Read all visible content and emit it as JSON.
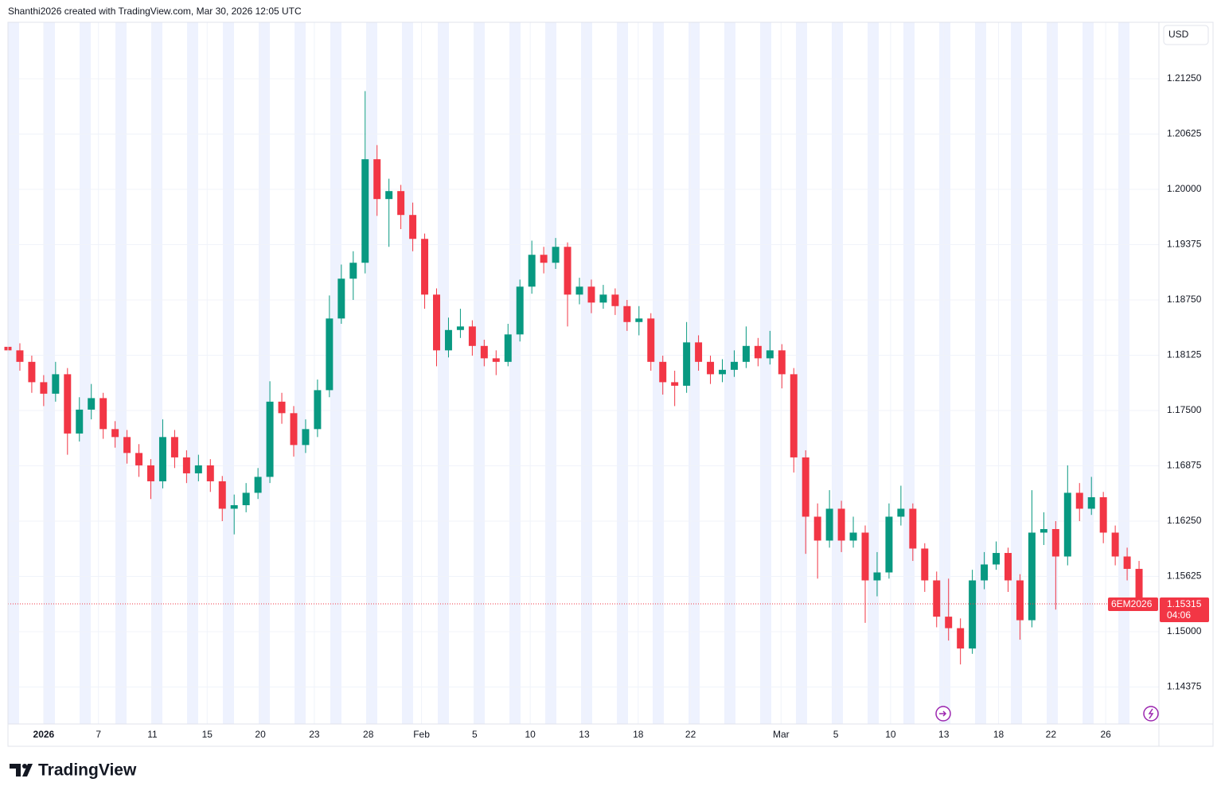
{
  "header": {
    "title": "Shanthi2026 created with TradingView.com, Mar 30, 2026 12:05 UTC"
  },
  "brand": "TradingView",
  "chart_data": {
    "type": "candlestick",
    "symbol": "6EM2026",
    "currency": "USD",
    "countdown": "04:06",
    "up_color": "#089981",
    "down_color": "#f23645",
    "grid": true,
    "xlim": [
      0,
      144
    ],
    "ylim": [
      1.13957,
      1.21888
    ],
    "xticks": [
      {
        "value": 4.5,
        "label": "2026"
      },
      {
        "value": 11.4,
        "label": "7"
      },
      {
        "value": 18.2,
        "label": "11"
      },
      {
        "value": 25.1,
        "label": "15"
      },
      {
        "value": 31.8,
        "label": "20"
      },
      {
        "value": 38.6,
        "label": "23"
      },
      {
        "value": 45.4,
        "label": "28"
      },
      {
        "value": 52.1,
        "label": "Feb"
      },
      {
        "value": 58.8,
        "label": "5"
      },
      {
        "value": 65.8,
        "label": "10"
      },
      {
        "value": 72.6,
        "label": "13"
      },
      {
        "value": 79.4,
        "label": "18"
      },
      {
        "value": 86.0,
        "label": "22"
      },
      {
        "value": 97.4,
        "label": "Mar"
      },
      {
        "value": 104.3,
        "label": "5"
      },
      {
        "value": 111.2,
        "label": "10"
      },
      {
        "value": 117.9,
        "label": "13"
      },
      {
        "value": 124.8,
        "label": "18"
      },
      {
        "value": 131.4,
        "label": "22"
      },
      {
        "value": 138.3,
        "label": "26"
      }
    ],
    "yticks": [
      {
        "value": 1.2125,
        "label": "1.21250"
      },
      {
        "value": 1.20625,
        "label": "1.20625"
      },
      {
        "value": 1.2,
        "label": "1.20000"
      },
      {
        "value": 1.19375,
        "label": "1.19375"
      },
      {
        "value": 1.1875,
        "label": "1.18750"
      },
      {
        "value": 1.18125,
        "label": "1.18125"
      },
      {
        "value": 1.175,
        "label": "1.17500"
      },
      {
        "value": 1.16875,
        "label": "1.16875"
      },
      {
        "value": 1.1625,
        "label": "1.16250"
      },
      {
        "value": 1.15625,
        "label": "1.15625"
      },
      {
        "value": 1.15,
        "label": "1.15000"
      },
      {
        "value": 1.14375,
        "label": "1.14375"
      }
    ],
    "x": [
      0,
      1.5,
      3,
      4.5,
      6,
      7.5,
      9,
      10.5,
      12,
      13.5,
      15,
      16.5,
      18,
      19.5,
      21,
      22.5,
      24,
      25.5,
      27,
      28.5,
      30,
      31.5,
      33,
      34.5,
      36,
      37.5,
      39,
      40.5,
      42,
      43.5,
      45,
      46.5,
      48,
      49.5,
      51,
      52.5,
      54,
      55.5,
      57,
      58.5,
      60,
      61.5,
      63,
      64.5,
      66,
      67.5,
      69,
      70.5,
      72,
      73.5,
      75,
      76.5,
      78,
      79.5,
      81,
      82.5,
      84,
      85.5,
      87,
      88.5,
      90,
      91.5,
      93,
      94.5,
      96,
      97.5,
      99,
      100.5,
      102,
      103.5,
      105,
      106.5,
      108,
      109.5,
      111,
      112.5,
      114,
      115.5,
      117,
      118.5,
      120,
      121.5,
      123,
      124.5,
      126,
      127.5,
      129,
      130.5,
      132,
      133.5,
      135,
      136.5,
      138,
      139.5,
      141,
      142.5
    ],
    "open": [
      1.1822,
      1.1818,
      1.1805,
      1.1782,
      1.1769,
      1.1791,
      1.1724,
      1.1751,
      1.1764,
      1.1729,
      1.172,
      1.1702,
      1.1688,
      1.167,
      1.172,
      1.1697,
      1.1679,
      1.1688,
      1.167,
      1.1639,
      1.1643,
      1.1657,
      1.1675,
      1.176,
      1.1747,
      1.1711,
      1.1729,
      1.1773,
      1.1854,
      1.1899,
      1.1917,
      1.2034,
      1.1989,
      1.1998,
      1.1971,
      1.1944,
      1.1881,
      1.1818,
      1.1841,
      1.1845,
      1.1823,
      1.1809,
      1.1805,
      1.1836,
      1.189,
      1.1926,
      1.1917,
      1.1935,
      1.1881,
      1.189,
      1.1872,
      1.1881,
      1.1868,
      1.185,
      1.1854,
      1.1805,
      1.1782,
      1.1778,
      1.1827,
      1.1805,
      1.1791,
      1.1796,
      1.1805,
      1.1823,
      1.1809,
      1.1818,
      1.1791,
      1.1697,
      1.163,
      1.1603,
      1.1639,
      1.1603,
      1.1612,
      1.1558,
      1.1567,
      1.163,
      1.1639,
      1.1594,
      1.1558,
      1.1517,
      1.1504,
      1.1481,
      1.1558,
      1.1576,
      1.1589,
      1.1558,
      1.1513,
      1.1612,
      1.1616,
      1.1585,
      1.1657,
      1.1639,
      1.1652,
      1.1612,
      1.1585,
      1.1571
    ],
    "high": [
      1.183,
      1.1826,
      1.1812,
      1.179,
      1.1805,
      1.1798,
      1.1765,
      1.178,
      1.177,
      1.1738,
      1.1728,
      1.1712,
      1.1695,
      1.174,
      1.1728,
      1.1705,
      1.17,
      1.1695,
      1.1676,
      1.1655,
      1.1668,
      1.1685,
      1.1783,
      1.177,
      1.1755,
      1.174,
      1.1785,
      1.188,
      1.1915,
      1.193,
      1.2111,
      1.205,
      1.2012,
      1.2005,
      1.1985,
      1.195,
      1.1888,
      1.1855,
      1.1865,
      1.1852,
      1.183,
      1.1818,
      1.1848,
      1.1898,
      1.1942,
      1.1935,
      1.1945,
      1.194,
      1.19,
      1.1898,
      1.1892,
      1.1888,
      1.1875,
      1.1868,
      1.186,
      1.1812,
      1.1795,
      1.185,
      1.1835,
      1.1812,
      1.1808,
      1.1818,
      1.1845,
      1.1832,
      1.184,
      1.1825,
      1.1798,
      1.1705,
      1.1645,
      1.166,
      1.1648,
      1.163,
      1.162,
      1.159,
      1.1645,
      1.1665,
      1.1645,
      1.16,
      1.1568,
      1.156,
      1.1515,
      1.157,
      1.159,
      1.1602,
      1.1595,
      1.1565,
      1.166,
      1.1635,
      1.1625,
      1.1688,
      1.1668,
      1.1675,
      1.1658,
      1.162,
      1.1595,
      1.158
    ],
    "low": [
      1.1808,
      1.1795,
      1.177,
      1.1755,
      1.176,
      1.17,
      1.1715,
      1.174,
      1.1718,
      1.1708,
      1.169,
      1.1675,
      1.165,
      1.1662,
      1.1685,
      1.1668,
      1.167,
      1.1658,
      1.1625,
      1.161,
      1.1635,
      1.165,
      1.1668,
      1.1735,
      1.1698,
      1.1702,
      1.172,
      1.1765,
      1.1848,
      1.1875,
      1.1905,
      1.197,
      1.1935,
      1.1955,
      1.193,
      1.1865,
      1.18,
      1.181,
      1.1832,
      1.1812,
      1.18,
      1.179,
      1.18,
      1.1828,
      1.1882,
      1.1905,
      1.191,
      1.1845,
      1.187,
      1.186,
      1.1865,
      1.1858,
      1.184,
      1.1835,
      1.1795,
      1.1768,
      1.1755,
      1.177,
      1.1795,
      1.178,
      1.1782,
      1.1788,
      1.1798,
      1.18,
      1.1802,
      1.1775,
      1.168,
      1.1588,
      1.156,
      1.1595,
      1.159,
      1.1595,
      1.151,
      1.154,
      1.156,
      1.162,
      1.158,
      1.1545,
      1.1505,
      1.149,
      1.1463,
      1.1475,
      1.1548,
      1.157,
      1.1545,
      1.1491,
      1.1505,
      1.1598,
      1.1525,
      1.1575,
      1.1625,
      1.1632,
      1.16,
      1.1575,
      1.1558,
      1.1528
    ],
    "close": [
      1.1818,
      1.1805,
      1.1782,
      1.1769,
      1.1791,
      1.1724,
      1.1751,
      1.1764,
      1.1729,
      1.172,
      1.1702,
      1.1688,
      1.167,
      1.172,
      1.1697,
      1.1679,
      1.1688,
      1.167,
      1.1639,
      1.1643,
      1.1657,
      1.1675,
      1.176,
      1.1747,
      1.1711,
      1.1729,
      1.1773,
      1.1854,
      1.1899,
      1.1917,
      1.2034,
      1.1989,
      1.1998,
      1.1971,
      1.1944,
      1.1881,
      1.1818,
      1.1841,
      1.1845,
      1.1823,
      1.1809,
      1.1805,
      1.1836,
      1.189,
      1.1926,
      1.1917,
      1.1935,
      1.1881,
      1.189,
      1.1872,
      1.1881,
      1.1868,
      1.185,
      1.1854,
      1.1805,
      1.1782,
      1.1778,
      1.1827,
      1.1805,
      1.1791,
      1.1796,
      1.1805,
      1.1823,
      1.1809,
      1.1818,
      1.1791,
      1.1697,
      1.163,
      1.1603,
      1.1639,
      1.1603,
      1.1612,
      1.1558,
      1.1567,
      1.163,
      1.1639,
      1.1594,
      1.1558,
      1.1517,
      1.1504,
      1.1481,
      1.1558,
      1.1576,
      1.1589,
      1.1558,
      1.1513,
      1.1612,
      1.1616,
      1.1585,
      1.1657,
      1.1639,
      1.1652,
      1.1612,
      1.1585,
      1.1571,
      1.15315
    ]
  }
}
